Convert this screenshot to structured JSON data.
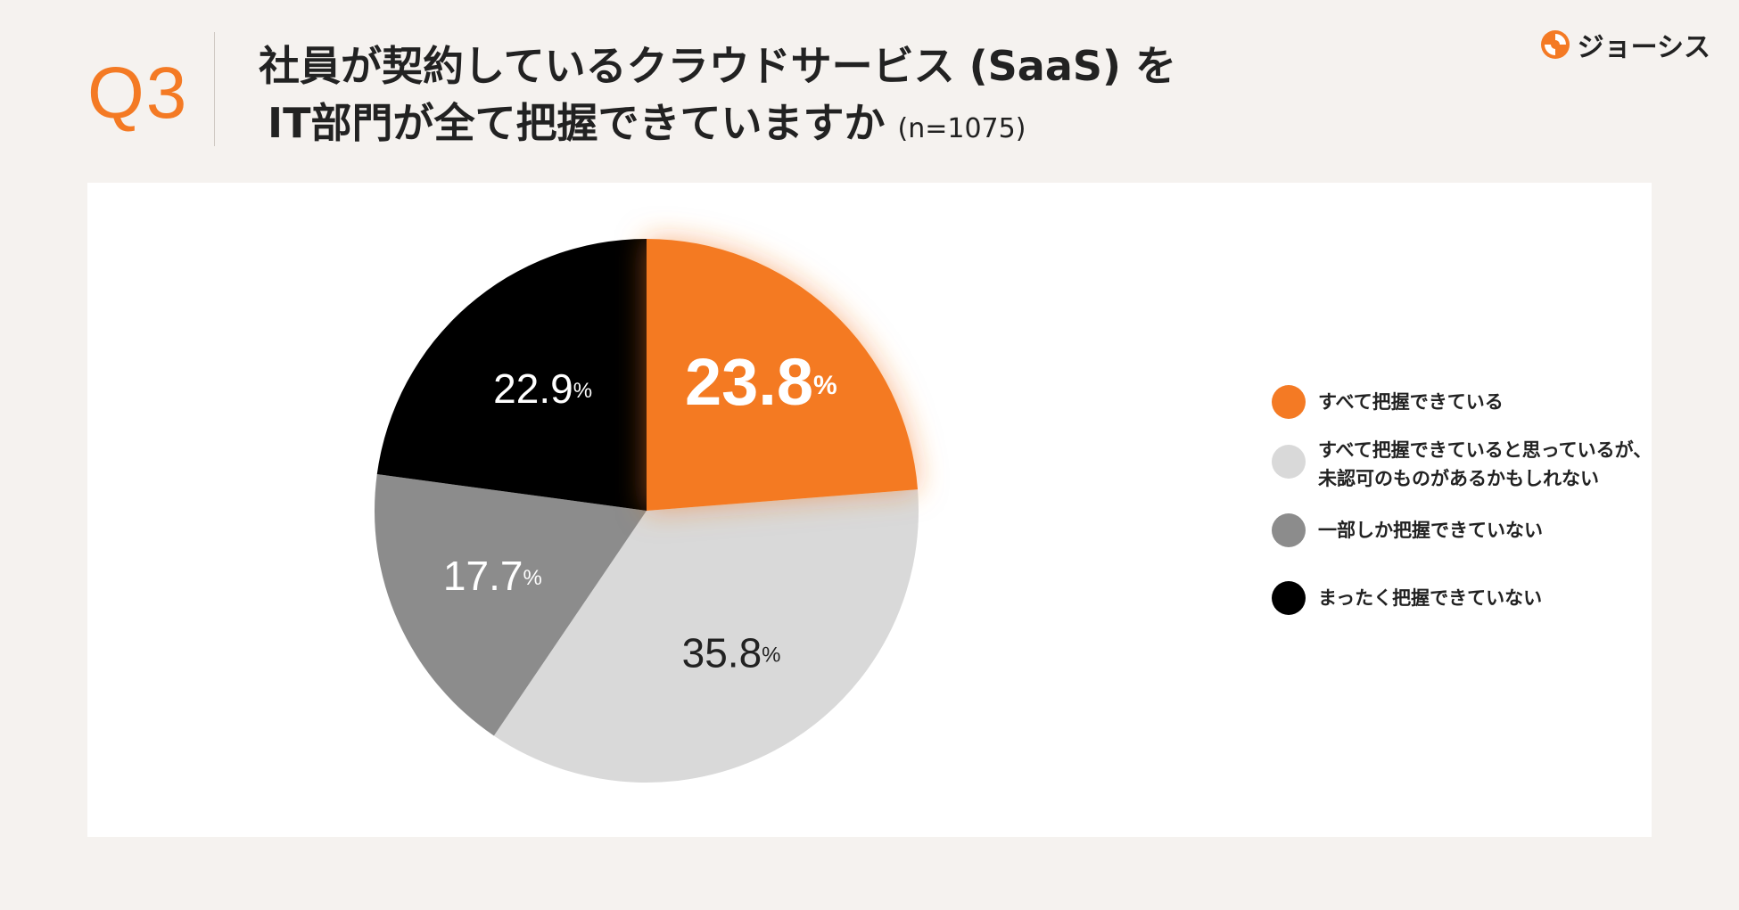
{
  "header": {
    "question_label": "Q3",
    "title_line1": "社員が契約しているクラウドサービス (SaaS) を",
    "title_line2": "IT部門が全て把握できていますか",
    "sample_size": "(n=1075)"
  },
  "logo": {
    "text": "ジョーシス",
    "icon": "joshys-logo-icon"
  },
  "colors": {
    "accent": "#f47a24",
    "background": "#f5f2ef",
    "panel": "#ffffff"
  },
  "chart_data": {
    "type": "pie",
    "title": "社員が契約しているクラウドサービス (SaaS) を IT部門が全て把握できていますか",
    "unit": "%",
    "slices": [
      {
        "label": "すべて把握できている",
        "value": 23.8,
        "value_text": "23.8",
        "color": "#f47a24",
        "highlight": true,
        "label_color": "#ffffff"
      },
      {
        "label": "すべて把握できていると思っているが、\n未認可のものがあるかもしれない",
        "value": 35.8,
        "value_text": "35.8",
        "color": "#d9d9d9",
        "highlight": false,
        "label_color": "#222222"
      },
      {
        "label": "一部しか把握できていない",
        "value": 17.7,
        "value_text": "17.7",
        "color": "#8c8c8c",
        "highlight": false,
        "label_color": "#ffffff"
      },
      {
        "label": "まったく把握できていない",
        "value": 22.9,
        "value_text": "22.9",
        "color": "#000000",
        "highlight": false,
        "label_color": "#ffffff"
      }
    ]
  }
}
